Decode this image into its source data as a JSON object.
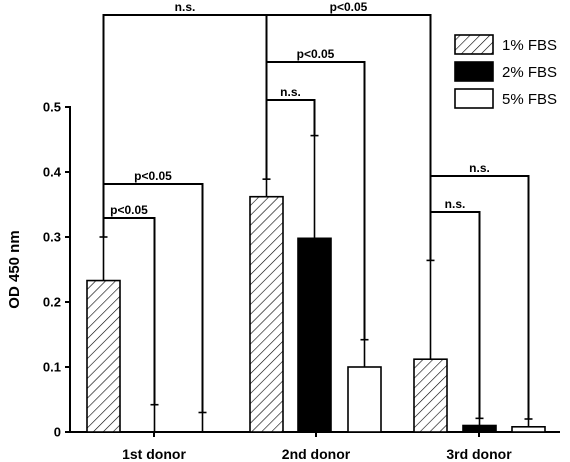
{
  "chart_data": {
    "type": "bar",
    "title": "",
    "xlabel": "",
    "ylabel": "OD 450 nm",
    "ylim": [
      0,
      0.5
    ],
    "yticks": [
      "0",
      "0.1",
      "0.2",
      "0.3",
      "0.4",
      "0.5"
    ],
    "categories": [
      "1st donor",
      "2nd donor",
      "3rd donor"
    ],
    "series": [
      {
        "name": "1% FBS",
        "fill": "hatched",
        "values": [
          0.233,
          0.362,
          0.112
        ],
        "errors": [
          0.067,
          0.027,
          0.152
        ]
      },
      {
        "name": "2% FBS",
        "fill": "#000000",
        "values": [
          0.0,
          0.298,
          0.01
        ],
        "errors": [
          0.042,
          0.158,
          0.011
        ]
      },
      {
        "name": "5% FBS",
        "fill": "#ffffff",
        "values": [
          0.0,
          0.1,
          0.008
        ],
        "errors": [
          0.03,
          0.042,
          0.012
        ]
      }
    ],
    "legend_position": "top-right",
    "grid": false,
    "significance": [
      {
        "label": "n.s.",
        "between": [
          "1st donor / 1% FBS",
          "2nd donor / 1% FBS"
        ]
      },
      {
        "label": "p<0.05",
        "between": [
          "2nd donor / 1% FBS",
          "3rd donor / 1% FBS"
        ]
      },
      {
        "label": "p<0.05",
        "between": [
          "2nd donor / 1% FBS",
          "2nd donor / 5% FBS"
        ]
      },
      {
        "label": "n.s.",
        "between": [
          "2nd donor / 1% FBS",
          "2nd donor / 2% FBS"
        ]
      },
      {
        "label": "p<0.05",
        "between": [
          "1st donor / 1% FBS",
          "1st donor / 5% FBS"
        ]
      },
      {
        "label": "p<0.05",
        "between": [
          "1st donor / 1% FBS",
          "1st donor / 2% FBS"
        ]
      },
      {
        "label": "n.s.",
        "between": [
          "3rd donor / 1% FBS",
          "3rd donor / 5% FBS"
        ]
      },
      {
        "label": "n.s.",
        "between": [
          "3rd donor / 1% FBS",
          "3rd donor / 2% FBS"
        ]
      }
    ]
  }
}
